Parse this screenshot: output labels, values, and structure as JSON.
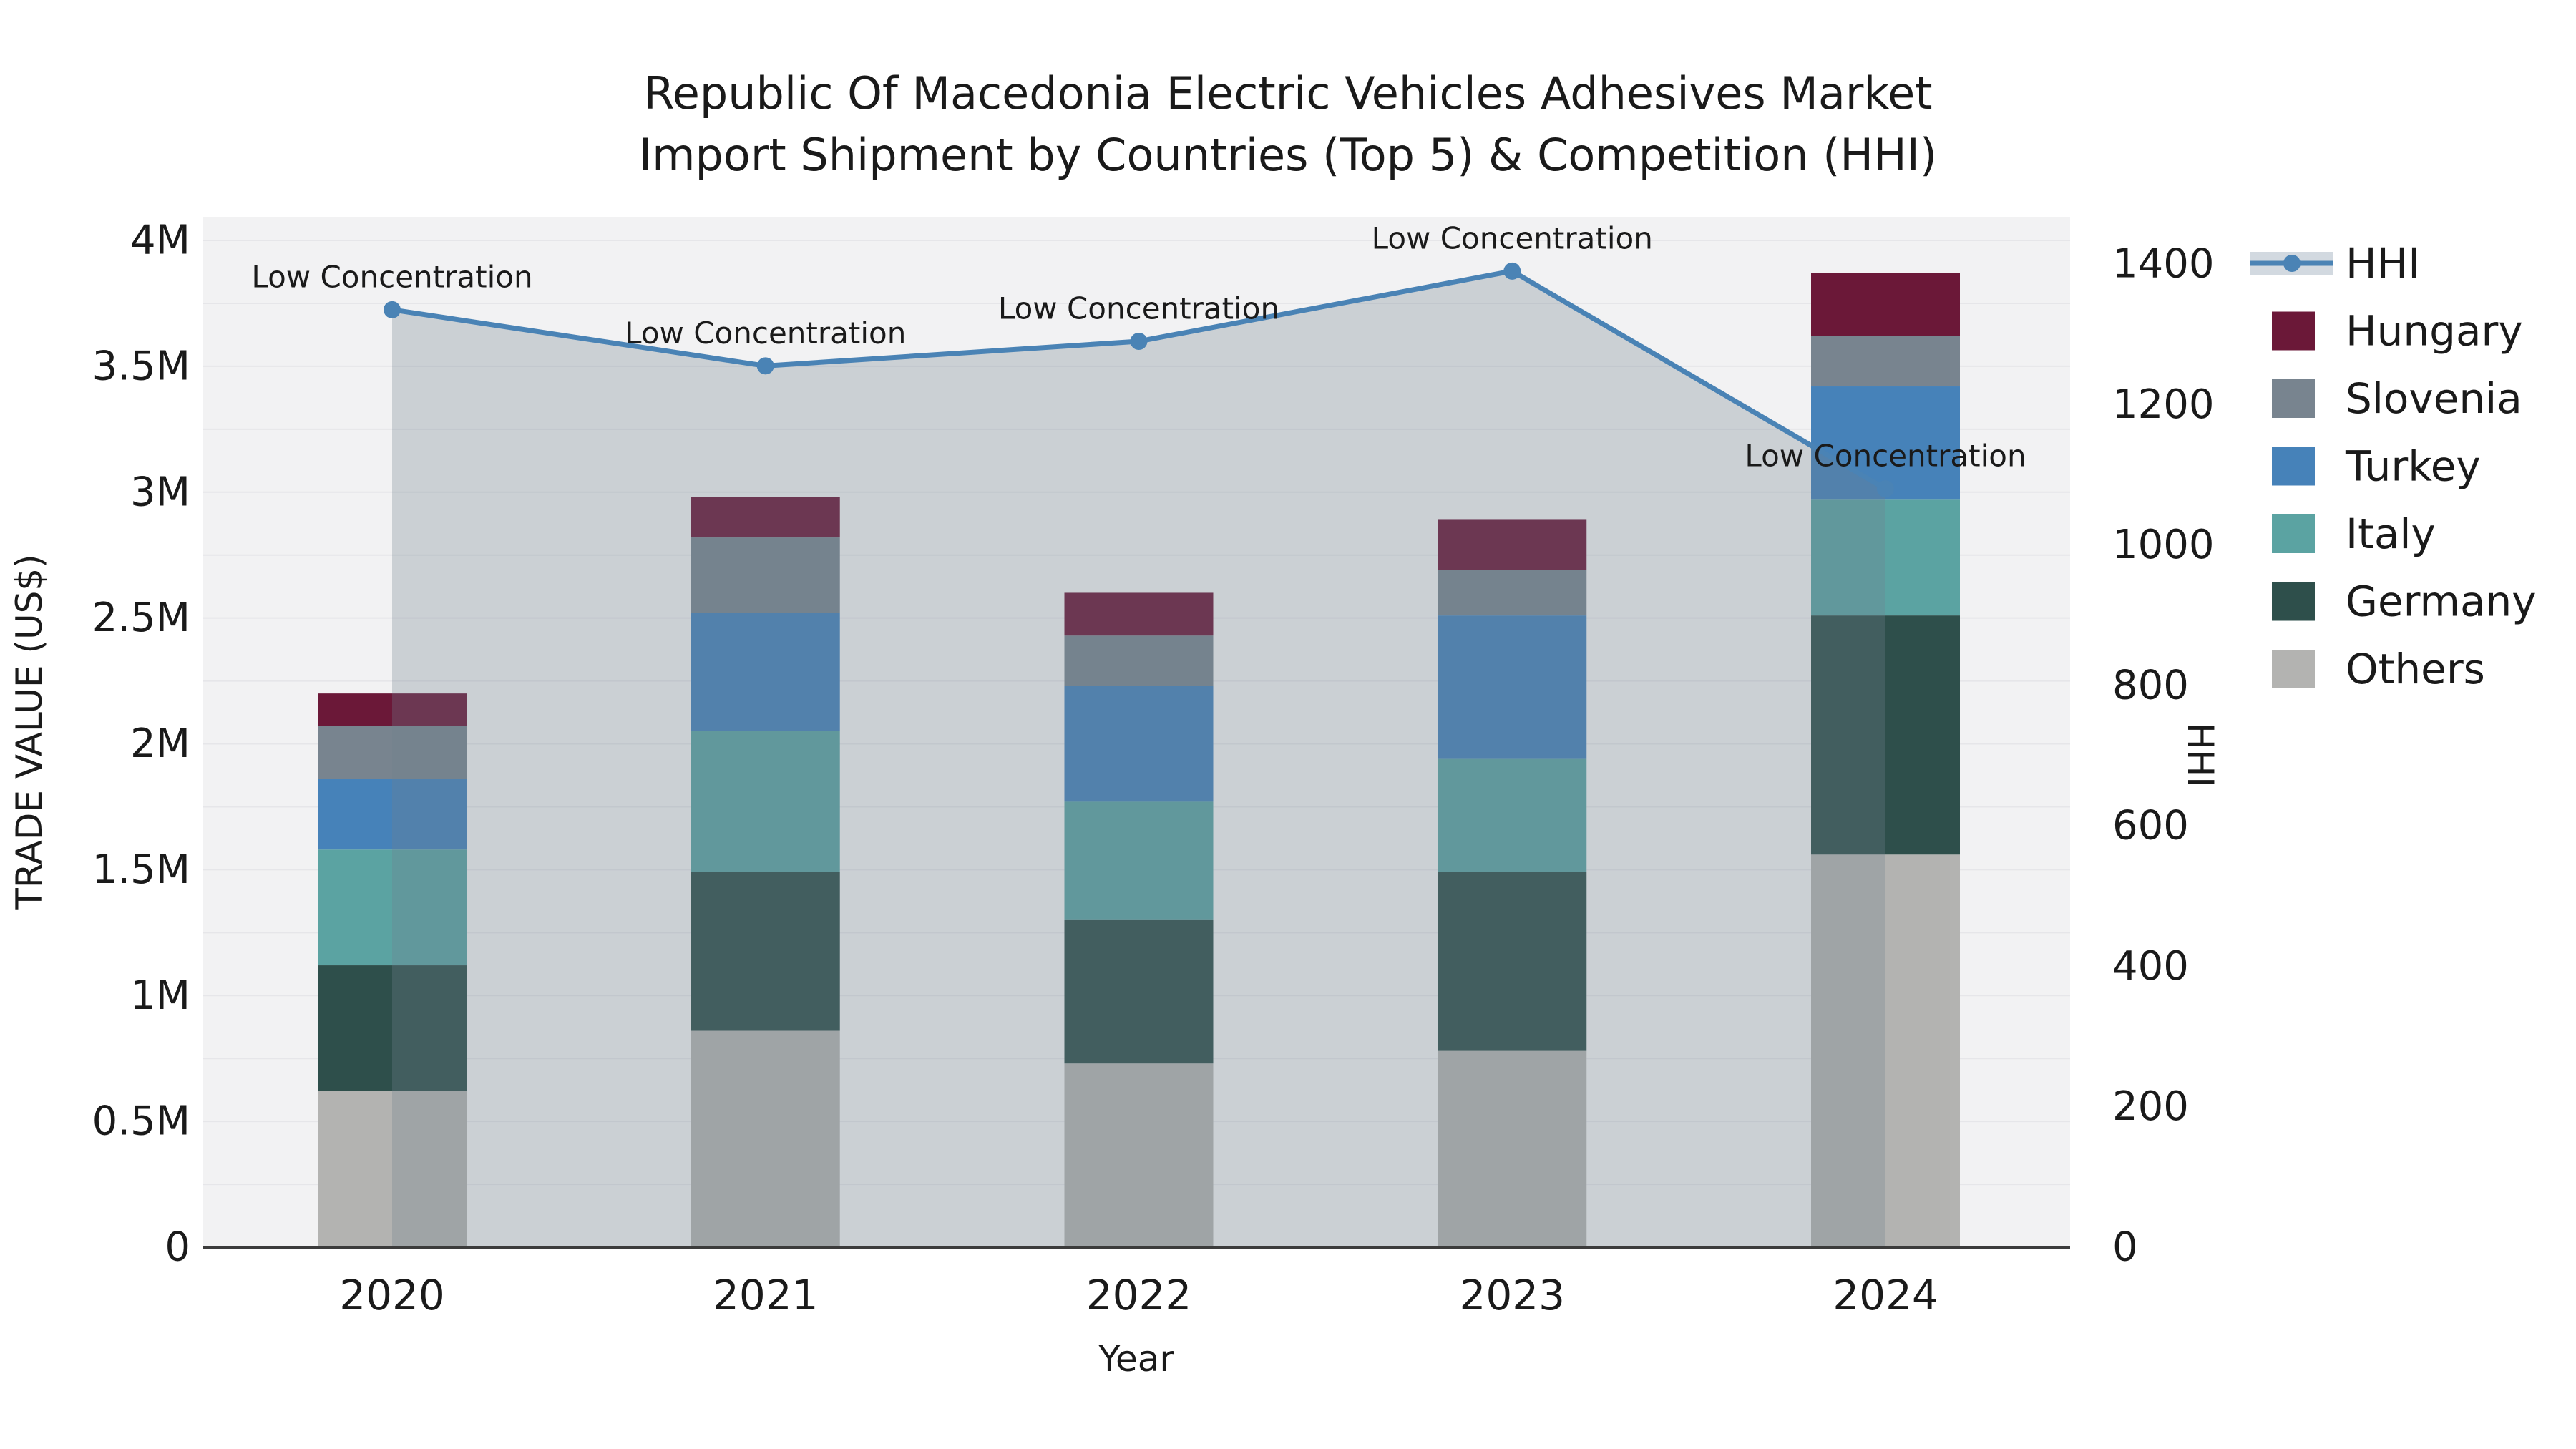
{
  "figure": {
    "title_line1": "Republic Of Macedonia Electric Vehicles Adhesives Market",
    "title_line2": "Import Shipment by Countries (Top 5) & Competition (HHI)"
  },
  "chart_data": {
    "type": "bar",
    "subtype": "stacked-bars-with-hhi-line-and-area-overlay",
    "title": "Republic Of Macedonia Electric Vehicles Adhesives Market Import Shipment by Countries (Top 5) & Competition (HHI)",
    "xlabel": "Year",
    "ylabel_left": "TRADE VALUE (US$)",
    "ylabel_right": "HHI",
    "categories": [
      "2020",
      "2021",
      "2022",
      "2023",
      "2024"
    ],
    "series": [
      {
        "name": "Others",
        "color": "#b3b3b1",
        "values": [
          620000,
          860000,
          730000,
          780000,
          1560000
        ]
      },
      {
        "name": "Germany",
        "color": "#2e4f4b",
        "values": [
          500000,
          630000,
          570000,
          710000,
          950000
        ]
      },
      {
        "name": "Italy",
        "color": "#5ba3a2",
        "values": [
          460000,
          560000,
          470000,
          450000,
          460000
        ]
      },
      {
        "name": "Turkey",
        "color": "#4682b9",
        "values": [
          280000,
          470000,
          460000,
          570000,
          450000
        ]
      },
      {
        "name": "Slovenia",
        "color": "#78848f",
        "values": [
          210000,
          300000,
          200000,
          180000,
          200000
        ]
      },
      {
        "name": "Hungary",
        "color": "#6b1838",
        "values": [
          130000,
          160000,
          170000,
          200000,
          250000
        ]
      }
    ],
    "line": {
      "name": "HHI",
      "color": "#4a83b5",
      "area_fill_color": "rgba(112,128,144,0.30)",
      "legend_band_color": "#d2d9e0",
      "values": [
        1335,
        1255,
        1290,
        1390,
        1080
      ],
      "annotations": [
        "Low Concentration",
        "Low Concentration",
        "Low Concentration",
        "Low Concentration",
        "Low Concentration"
      ]
    },
    "axes": {
      "left": {
        "tick_labels": [
          "0",
          "0.5M",
          "1M",
          "1.5M",
          "2M",
          "2.5M",
          "3M",
          "3.5M",
          "4M"
        ],
        "tick_values": [
          0,
          500000,
          1000000,
          1500000,
          2000000,
          2500000,
          3000000,
          3500000,
          4000000
        ],
        "grid_step": 250000,
        "max_value": 4000000
      },
      "right": {
        "tick_labels": [
          "0",
          "200",
          "400",
          "600",
          "800",
          "1000",
          "1200",
          "1400"
        ],
        "tick_values": [
          0,
          200,
          400,
          600,
          800,
          1000,
          1200,
          1400
        ],
        "max_value": 1400
      },
      "x": {
        "tick_labels": [
          "2020",
          "2021",
          "2022",
          "2023",
          "2024"
        ]
      }
    },
    "legend": [
      "HHI",
      "Hungary",
      "Slovenia",
      "Turkey",
      "Italy",
      "Germany",
      "Others"
    ],
    "plot_bg_color": "#f2f2f3",
    "gridline_color": "#e6e6e9",
    "axis_line_color": "#3c3c3c"
  }
}
